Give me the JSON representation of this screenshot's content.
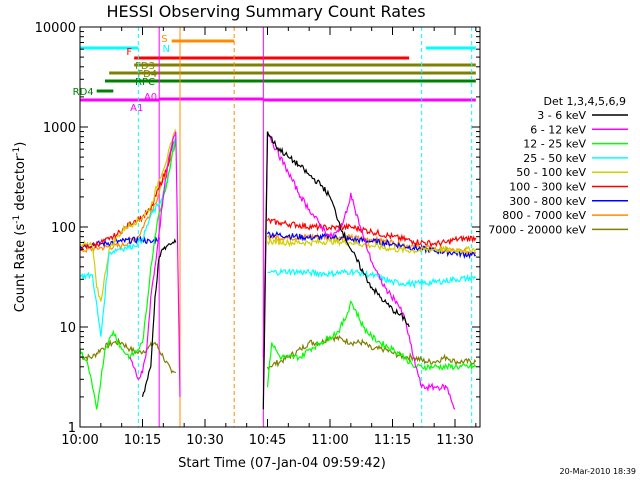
{
  "chart_data": {
    "type": "line",
    "title": "HESSI Observing Summary Count Rates",
    "xlabel": "Start Time (07-Jan-04 09:59:42)",
    "ylabel": "Count Rate (s⁻¹ detector⁻¹)",
    "ylabel_main": "Count Rate (s",
    "ylabel_sup1": "-1",
    "ylabel_mid": " detector",
    "ylabel_sup2": "-1",
    "ylabel_end": ")",
    "y_scale": "log",
    "ylim": [
      1,
      10000
    ],
    "xlim": [
      "10:00",
      "11:36"
    ],
    "x_ticks": [
      "10:00",
      "10:15",
      "10:30",
      "10:45",
      "11:00",
      "11:15",
      "11:30"
    ],
    "y_ticks": [
      "1",
      "10",
      "100",
      "1000",
      "10000"
    ],
    "legend_title": "Det 1,3,4,5,6,9",
    "legend_position": "right",
    "timestamp": "20-Mar-2010 18:39",
    "flags": [
      {
        "label": "S",
        "color": "#ff8c00",
        "start": "10:22",
        "end": "10:37"
      },
      {
        "label": "N",
        "color": "#00ffff",
        "start": "10:00",
        "end": "10:14"
      },
      {
        "label": "N",
        "color": "#00ffff",
        "start": "11:23",
        "end": "11:35"
      },
      {
        "label": "F",
        "color": "#ff0000",
        "start": "10:13",
        "end": "11:19"
      },
      {
        "label": "FD3",
        "color": "#808000",
        "start": "10:13",
        "end": "11:35"
      },
      {
        "label": "FD4",
        "color": "#808000",
        "start": "10:07",
        "end": "11:35"
      },
      {
        "label": "RPC",
        "color": "#008000",
        "start": "10:06",
        "end": "11:35"
      },
      {
        "label": "RD4",
        "color": "#008000",
        "start": "10:04",
        "end": "10:08"
      },
      {
        "label": "A0",
        "color": "#ff00ff",
        "start": "10:19",
        "end": "10:44"
      },
      {
        "label": "A1",
        "color": "#ff00ff",
        "start": "10:00",
        "end": "10:19"
      },
      {
        "label": "A1",
        "color": "#ff00ff",
        "start": "10:44",
        "end": "11:35"
      }
    ],
    "series": [
      {
        "name": "3 - 6 keV",
        "color": "#000000",
        "x": [
          "10:15",
          "10:17",
          "10:18",
          "10:19",
          "10:20",
          "10:21",
          "10:22",
          "10:23",
          "10:44",
          "10:45",
          "10:47",
          "10:50",
          "10:53",
          "10:55",
          "10:58",
          "11:00",
          "11:03",
          "11:05",
          "11:08",
          "11:10",
          "11:13",
          "11:15",
          "11:18",
          "11:19"
        ],
        "y": [
          2,
          4,
          20,
          50,
          60,
          65,
          68,
          70,
          1.5,
          900,
          650,
          500,
          400,
          330,
          260,
          200,
          90,
          60,
          35,
          25,
          18,
          15,
          12,
          10
        ]
      },
      {
        "name": "6 - 12 keV",
        "color": "#ff00ff",
        "x": [
          "10:12",
          "10:14",
          "10:15",
          "10:16",
          "10:17",
          "10:18",
          "10:19",
          "10:20",
          "10:21",
          "10:22",
          "10:23",
          "10:24",
          "10:44",
          "10:45",
          "10:47",
          "10:50",
          "10:53",
          "10:55",
          "10:58",
          "11:00",
          "11:02",
          "11:04",
          "11:05",
          "11:06",
          "11:08",
          "11:10",
          "11:12",
          "11:14",
          "11:16",
          "11:18",
          "11:20",
          "11:22",
          "11:24",
          "11:26",
          "11:28",
          "11:30"
        ],
        "y": [
          5,
          3,
          3.5,
          6,
          20,
          40,
          90,
          200,
          400,
          650,
          900,
          2,
          5,
          900,
          600,
          350,
          200,
          150,
          100,
          80,
          90,
          140,
          220,
          150,
          80,
          45,
          30,
          22,
          18,
          12,
          5,
          2.5,
          2.5,
          2.5,
          2.5,
          1.5
        ]
      },
      {
        "name": "12 - 25 keV",
        "color": "#00ff00",
        "x": [
          "10:00",
          "10:02",
          "10:04",
          "10:06",
          "10:08",
          "10:10",
          "10:12",
          "10:14",
          "10:15",
          "10:16",
          "10:17",
          "10:18",
          "10:19",
          "10:20",
          "10:21",
          "10:22",
          "10:23",
          "10:45",
          "10:46",
          "10:48",
          "10:50",
          "10:53",
          "10:55",
          "10:58",
          "11:00",
          "11:02",
          "11:04",
          "11:05",
          "11:06",
          "11:08",
          "11:10",
          "11:12",
          "11:15",
          "11:18",
          "11:20",
          "11:22",
          "11:25",
          "11:30",
          "11:35"
        ],
        "y": [
          6,
          4,
          1.5,
          6,
          9,
          6,
          5,
          6,
          7,
          15,
          40,
          80,
          140,
          200,
          300,
          500,
          750,
          2.5,
          7,
          5,
          5,
          5,
          6,
          7,
          8,
          9,
          13,
          18,
          15,
          10,
          8,
          7,
          6,
          5,
          4,
          4,
          4,
          4,
          4
        ]
      },
      {
        "name": "25 - 50 keV",
        "color": "#00ffff",
        "x": [
          "10:00",
          "10:03",
          "10:05",
          "10:07",
          "10:09",
          "10:11",
          "10:13",
          "10:15",
          "10:17",
          "10:19",
          "10:21",
          "10:22",
          "10:23",
          "10:45",
          "10:50",
          "10:55",
          "11:00",
          "11:05",
          "11:10",
          "11:15",
          "11:20",
          "11:25",
          "11:30",
          "11:35"
        ],
        "y": [
          32,
          33,
          8,
          55,
          60,
          62,
          65,
          75,
          130,
          170,
          280,
          500,
          800,
          35,
          36,
          35,
          34,
          36,
          33,
          28,
          27,
          28,
          30,
          31
        ]
      },
      {
        "name": "50 - 100 keV",
        "color": "#d0d000",
        "x": [
          "10:00",
          "10:03",
          "10:04",
          "10:05",
          "10:07",
          "10:09",
          "10:11",
          "10:13",
          "10:15",
          "10:17",
          "10:19",
          "10:21",
          "10:22",
          "10:23",
          "10:45",
          "10:50",
          "10:55",
          "11:00",
          "11:05",
          "11:10",
          "11:15",
          "11:20",
          "11:25",
          "11:30",
          "11:35"
        ],
        "y": [
          68,
          65,
          25,
          18,
          60,
          80,
          100,
          110,
          125,
          160,
          300,
          500,
          700,
          950,
          72,
          70,
          70,
          72,
          70,
          65,
          60,
          58,
          60,
          58,
          60
        ]
      },
      {
        "name": "100 - 300 keV",
        "color": "#ff0000",
        "x": [
          "10:00",
          "10:03",
          "10:05",
          "10:07",
          "10:09",
          "10:11",
          "10:13",
          "10:15",
          "10:17",
          "10:19",
          "10:21",
          "10:22",
          "10:23",
          "10:45",
          "10:48",
          "10:52",
          "10:56",
          "11:00",
          "11:05",
          "11:10",
          "11:15",
          "11:20",
          "11:25",
          "11:28",
          "11:30",
          "11:35"
        ],
        "y": [
          62,
          65,
          70,
          75,
          85,
          100,
          115,
          125,
          150,
          250,
          400,
          600,
          800,
          115,
          110,
          105,
          100,
          98,
          100,
          90,
          80,
          72,
          68,
          70,
          75,
          78
        ]
      },
      {
        "name": "300 - 800 keV",
        "color": "#0000ff",
        "x": [
          "10:00",
          "10:05",
          "10:10",
          "10:15",
          "10:17",
          "10:19",
          "10:45",
          "10:50",
          "10:55",
          "11:00",
          "11:05",
          "11:10",
          "11:15",
          "11:20",
          "11:25",
          "11:30",
          "11:35"
        ],
        "y": [
          65,
          68,
          72,
          75,
          70,
          78,
          85,
          82,
          78,
          80,
          75,
          72,
          68,
          62,
          58,
          55,
          52
        ]
      },
      {
        "name": "800 - 7000 keV",
        "color": "#ff8c00",
        "x": [
          "10:00",
          "10:05",
          "10:10",
          "10:14",
          "10:16",
          "10:18",
          "10:20",
          "10:22",
          "10:23",
          "10:45",
          "10:50",
          "10:55",
          "11:00",
          "11:05",
          "11:10",
          "11:15",
          "11:20",
          "11:25",
          "11:30",
          "11:35"
        ],
        "y": [
          58,
          62,
          65,
          80,
          120,
          170,
          300,
          500,
          780,
          80,
          78,
          80,
          80,
          78,
          75,
          70,
          64,
          60,
          58,
          56
        ]
      },
      {
        "name": "7000 - 20000 keV",
        "color": "#808000",
        "x": [
          "10:00",
          "10:03",
          "10:05",
          "10:08",
          "10:10",
          "10:12",
          "10:14",
          "10:16",
          "10:18",
          "10:20",
          "10:22",
          "10:23",
          "10:45",
          "10:48",
          "10:50",
          "10:53",
          "10:55",
          "10:58",
          "11:00",
          "11:03",
          "11:05",
          "11:08",
          "11:10",
          "11:13",
          "11:15",
          "11:18",
          "11:20",
          "11:23",
          "11:25",
          "11:28",
          "11:30",
          "11:35"
        ],
        "y": [
          5,
          5,
          6,
          7,
          7,
          6,
          5.5,
          6,
          7,
          5,
          3.5,
          3.5,
          4,
          4.5,
          5,
          6,
          7,
          7,
          8,
          7.5,
          7,
          7,
          6,
          6,
          5.5,
          5,
          5,
          4.5,
          4.5,
          5,
          4.5,
          4.5
        ]
      }
    ],
    "vlines_solid": [
      {
        "time": "10:19",
        "color": "#ff00ff"
      },
      {
        "time": "10:24",
        "color": "#ff8c00"
      },
      {
        "time": "10:44",
        "color": "#ff00ff"
      }
    ],
    "vlines_dashed": [
      {
        "time": "10:14",
        "color": "#00ffff"
      },
      {
        "time": "10:37",
        "color": "#ff8c00"
      },
      {
        "time": "11:22",
        "color": "#00ffff"
      },
      {
        "time": "11:34",
        "color": "#00ffff"
      }
    ]
  }
}
